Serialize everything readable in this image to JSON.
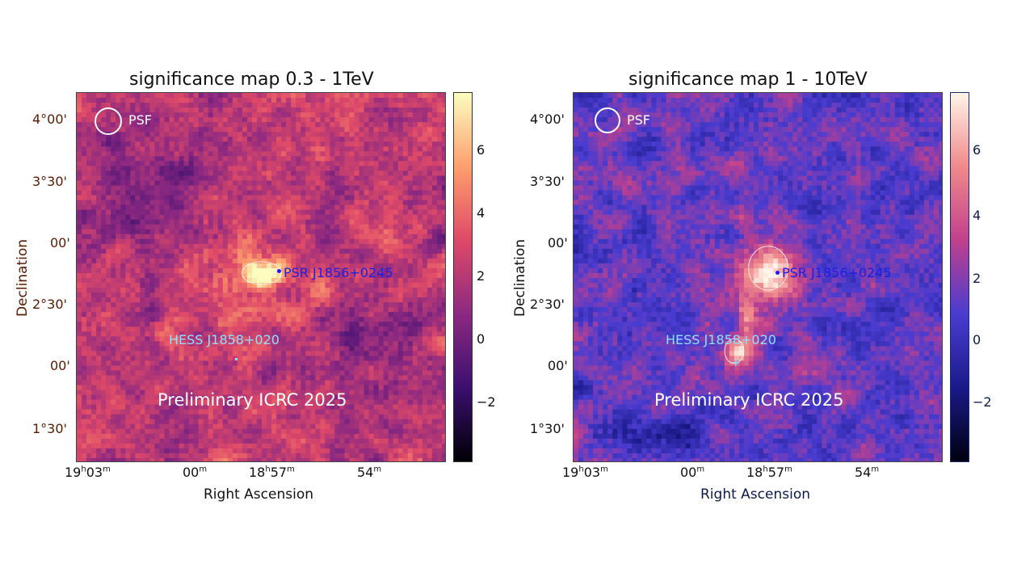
{
  "chart_data": [
    {
      "type": "heatmap",
      "title": "significance map 0.3 - 1TeV",
      "xlabel": "Right Ascension",
      "ylabel": "Declination",
      "xticks": [
        {
          "h": "19",
          "hs": "h",
          "m": "03",
          "ms": "m"
        },
        {
          "h": "",
          "hs": "",
          "m": "00",
          "ms": "m"
        },
        {
          "h": "18",
          "hs": "h",
          "m": "57",
          "ms": "m"
        },
        {
          "h": "",
          "hs": "",
          "m": "54",
          "ms": "m"
        }
      ],
      "yticks": [
        "4°00'",
        "3°30'",
        "00'",
        "2°30'",
        "00'",
        "1°30'"
      ],
      "colorbar_ticks": [
        "6",
        "4",
        "2",
        "0",
        "−2"
      ],
      "colorbar_range": [
        -3.8,
        7.8
      ],
      "colormap": [
        "#000004",
        "#3b0f70",
        "#8c2981",
        "#de4968",
        "#fe9f6d",
        "#fcfdbf"
      ],
      "annotations": {
        "psf": "PSF",
        "pulsar": "PSR J1856+0245",
        "hess": "HESS J1858+020",
        "watermark": "Preliminary ICRC 2025"
      },
      "axis_color": "#5a1a00",
      "hotspots": [
        "pulsar region ~7σ"
      ]
    },
    {
      "type": "heatmap",
      "title": "significance map 1 - 10TeV",
      "xlabel": "Right Ascension",
      "ylabel": "Declination",
      "xticks": [
        {
          "h": "19",
          "hs": "h",
          "m": "03",
          "ms": "m"
        },
        {
          "h": "",
          "hs": "",
          "m": "00",
          "ms": "m"
        },
        {
          "h": "18",
          "hs": "h",
          "m": "57",
          "ms": "m"
        },
        {
          "h": "",
          "hs": "",
          "m": "54",
          "ms": "m"
        }
      ],
      "yticks": [
        "4°00'",
        "3°30'",
        "00'",
        "2°30'",
        "00'",
        "1°30'"
      ],
      "colorbar_ticks": [
        "6",
        "4",
        "2",
        "0",
        "−2"
      ],
      "colorbar_range": [
        -3.8,
        7.8
      ],
      "colormap": [
        "#000010",
        "#1a1a8a",
        "#4a3cd0",
        "#c0408c",
        "#f08a8a",
        "#fff4e8"
      ],
      "annotations": {
        "psf": "PSF",
        "pulsar": "PSR J1856+0245",
        "hess": "HESS J1858+020",
        "watermark": "Preliminary ICRC 2025"
      },
      "axis_color": "#0a1a4a",
      "hotspots": [
        "pulsar region ~7σ",
        "HESS J1858+020 region ~6σ"
      ]
    }
  ]
}
